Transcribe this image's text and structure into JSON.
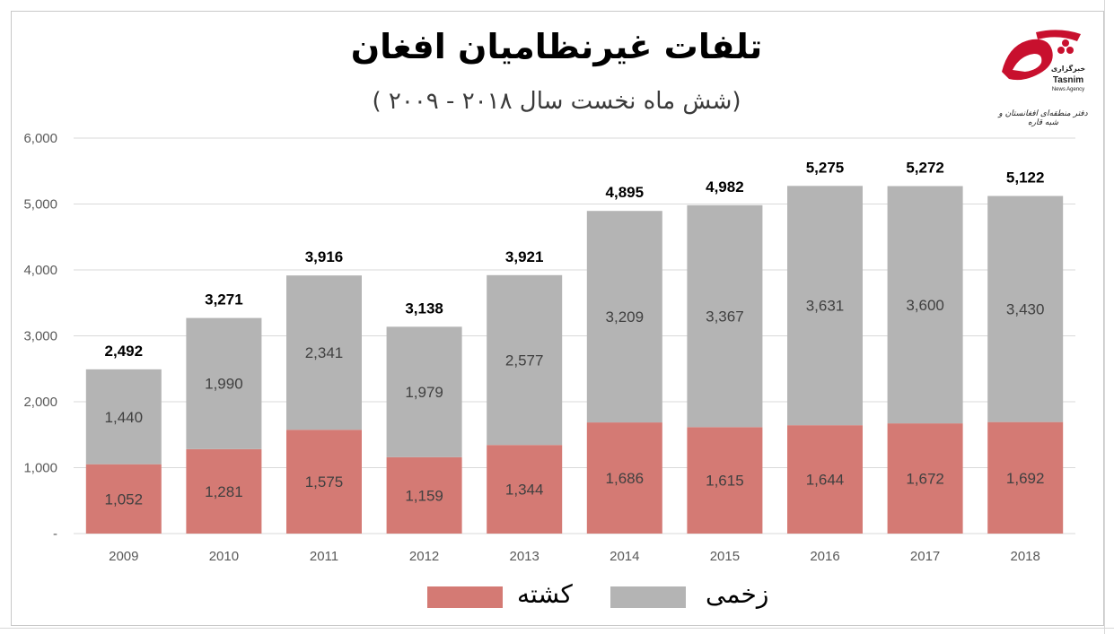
{
  "title": "تلفات غیرنظامیان افغان",
  "subtitle": "(شش ماه نخست سال ۲۰۱۸ - ۲۰۰۹ )",
  "logo": {
    "text_fa": "خبرگزاری",
    "text_en": "Tasnim",
    "agency": "News Agency",
    "office": "دفتر منطقه‌ای افغانستان و شبه قاره"
  },
  "colors": {
    "killed": "#d47a74",
    "injured": "#b4b4b4",
    "grid": "#d9d9d9"
  },
  "chart_data": {
    "type": "bar",
    "stacked": true,
    "title": "تلفات غیرنظامیان افغان",
    "subtitle": "(شش ماه نخست سال ۲۰۱۸ - ۲۰۰۹ )",
    "categories": [
      "2009",
      "2010",
      "2011",
      "2012",
      "2013",
      "2014",
      "2015",
      "2016",
      "2017",
      "2018"
    ],
    "series": [
      {
        "name": "کشته",
        "values": [
          1052,
          1281,
          1575,
          1159,
          1344,
          1686,
          1615,
          1644,
          1672,
          1692
        ]
      },
      {
        "name": "زخمی",
        "values": [
          1440,
          1990,
          2341,
          1979,
          2577,
          3209,
          3367,
          3631,
          3600,
          3430
        ]
      }
    ],
    "totals": [
      2492,
      3271,
      3916,
      3138,
      3921,
      4895,
      4982,
      5275,
      5272,
      5122
    ],
    "yticks": [
      "-",
      "1,000",
      "2,000",
      "3,000",
      "4,000",
      "5,000",
      "6,000"
    ],
    "ylim": [
      0,
      6000
    ],
    "grid": true,
    "legend": "bottom",
    "xlabel": "",
    "ylabel": ""
  }
}
